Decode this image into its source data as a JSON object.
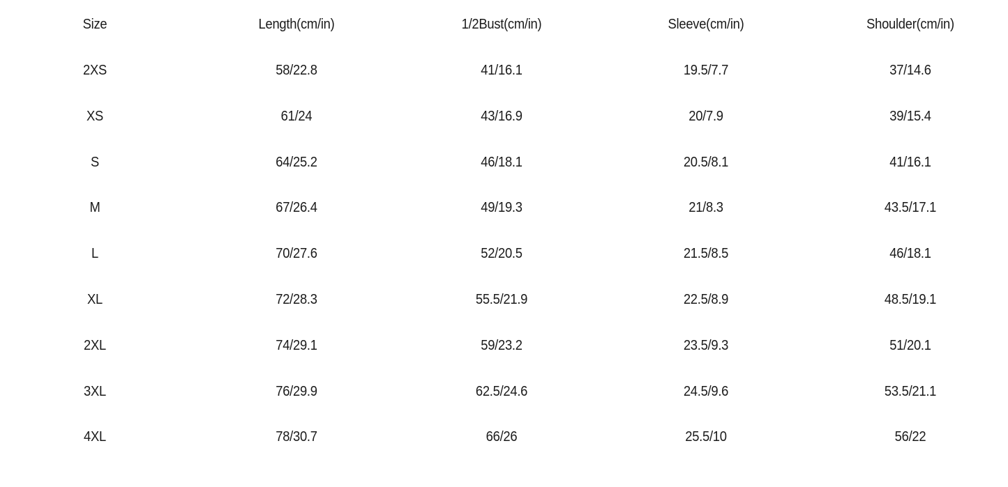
{
  "size_chart": {
    "headers": [
      "Size",
      "Length(cm/in)",
      "1/2Bust(cm/in)",
      "Sleeve(cm/in)",
      "Shoulder(cm/in)"
    ],
    "rows": [
      [
        "2XS",
        "58/22.8",
        "41/16.1",
        "19.5/7.7",
        "37/14.6"
      ],
      [
        "XS",
        "61/24",
        "43/16.9",
        "20/7.9",
        "39/15.4"
      ],
      [
        "S",
        "64/25.2",
        "46/18.1",
        "20.5/8.1",
        "41/16.1"
      ],
      [
        "M",
        "67/26.4",
        "49/19.3",
        "21/8.3",
        "43.5/17.1"
      ],
      [
        "L",
        "70/27.6",
        "52/20.5",
        "21.5/8.5",
        "46/18.1"
      ],
      [
        "XL",
        "72/28.3",
        "55.5/21.9",
        "22.5/8.9",
        "48.5/19.1"
      ],
      [
        "2XL",
        "74/29.1",
        "59/23.2",
        "23.5/9.3",
        "51/20.1"
      ],
      [
        "3XL",
        "76/29.9",
        "62.5/24.6",
        "24.5/9.6",
        "53.5/21.1"
      ],
      [
        "4XL",
        "78/30.7",
        "66/26",
        "25.5/10",
        "56/22"
      ]
    ]
  }
}
